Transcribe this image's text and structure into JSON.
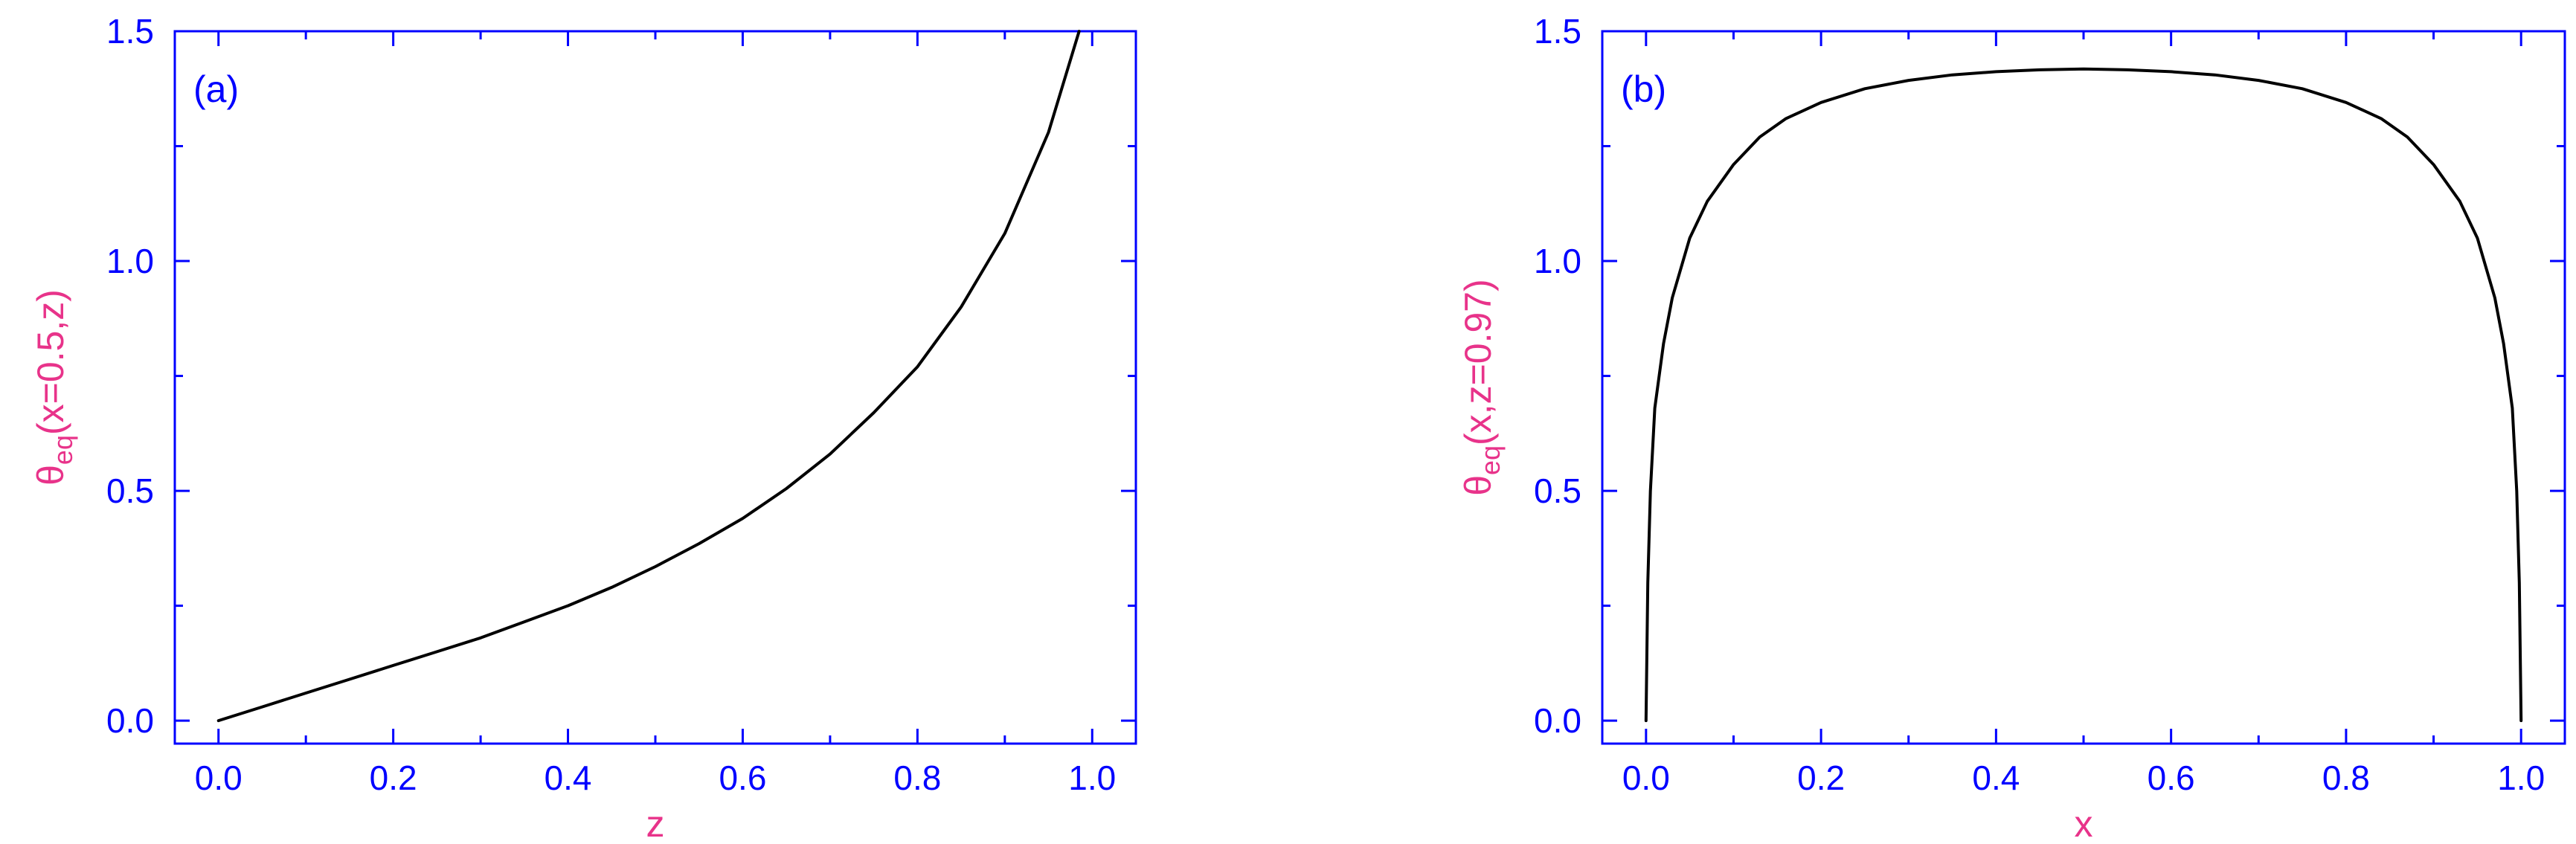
{
  "colors": {
    "axis": "#0000ff",
    "axis_label": "#e8338a",
    "curve": "#000000",
    "background": "#ffffff"
  },
  "chart_data": [
    {
      "type": "line",
      "panel_label": "(a)",
      "xlabel": "z",
      "ylabel": {
        "base": "θ",
        "sub": "eq",
        "rest": "(x=0.5,z)"
      },
      "xlim": [
        -0.05,
        1.05
      ],
      "ylim": [
        -0.05,
        1.5
      ],
      "xticks": [
        0.0,
        0.2,
        0.4,
        0.6,
        0.8,
        1.0
      ],
      "xtick_labels": [
        "0.0",
        "0.2",
        "0.4",
        "0.6",
        "0.8",
        "1.0"
      ],
      "yticks": [
        0.0,
        0.5,
        1.0,
        1.5
      ],
      "ytick_labels": [
        "0.0",
        "0.5",
        "1.0",
        "1.5"
      ],
      "grid": false,
      "series": [
        {
          "x": [
            0.0,
            0.05,
            0.1,
            0.15,
            0.2,
            0.25,
            0.3,
            0.35,
            0.4,
            0.45,
            0.5,
            0.55,
            0.6,
            0.65,
            0.7,
            0.75,
            0.8,
            0.85,
            0.9,
            0.95,
            0.985
          ],
          "y": [
            0.0,
            0.03,
            0.06,
            0.09,
            0.12,
            0.15,
            0.18,
            0.215,
            0.25,
            0.29,
            0.335,
            0.385,
            0.44,
            0.505,
            0.58,
            0.67,
            0.77,
            0.9,
            1.06,
            1.28,
            1.5
          ]
        }
      ]
    },
    {
      "type": "line",
      "panel_label": "(b)",
      "xlabel": "x",
      "ylabel": {
        "base": "θ",
        "sub": "eq",
        "rest": "(x,z=0.97)"
      },
      "xlim": [
        -0.05,
        1.05
      ],
      "ylim": [
        -0.05,
        1.5
      ],
      "xticks": [
        0.0,
        0.2,
        0.4,
        0.6,
        0.8,
        1.0
      ],
      "xtick_labels": [
        "0.0",
        "0.2",
        "0.4",
        "0.6",
        "0.8",
        "1.0"
      ],
      "yticks": [
        0.0,
        0.5,
        1.0,
        1.5
      ],
      "ytick_labels": [
        "0.0",
        "0.5",
        "1.0",
        "1.5"
      ],
      "grid": false,
      "series": [
        {
          "x": [
            0.0,
            0.002,
            0.005,
            0.01,
            0.02,
            0.03,
            0.05,
            0.07,
            0.1,
            0.13,
            0.16,
            0.2,
            0.25,
            0.3,
            0.35,
            0.4,
            0.45,
            0.5,
            0.55,
            0.6,
            0.65,
            0.7,
            0.75,
            0.8,
            0.84,
            0.87,
            0.9,
            0.93,
            0.95,
            0.97,
            0.98,
            0.99,
            0.995,
            0.998,
            1.0
          ],
          "y": [
            0.0,
            0.3,
            0.5,
            0.68,
            0.82,
            0.92,
            1.05,
            1.13,
            1.21,
            1.27,
            1.31,
            1.345,
            1.375,
            1.393,
            1.405,
            1.412,
            1.416,
            1.418,
            1.416,
            1.412,
            1.405,
            1.393,
            1.375,
            1.345,
            1.31,
            1.27,
            1.21,
            1.13,
            1.05,
            0.92,
            0.82,
            0.68,
            0.5,
            0.3,
            0.0
          ]
        }
      ]
    }
  ]
}
